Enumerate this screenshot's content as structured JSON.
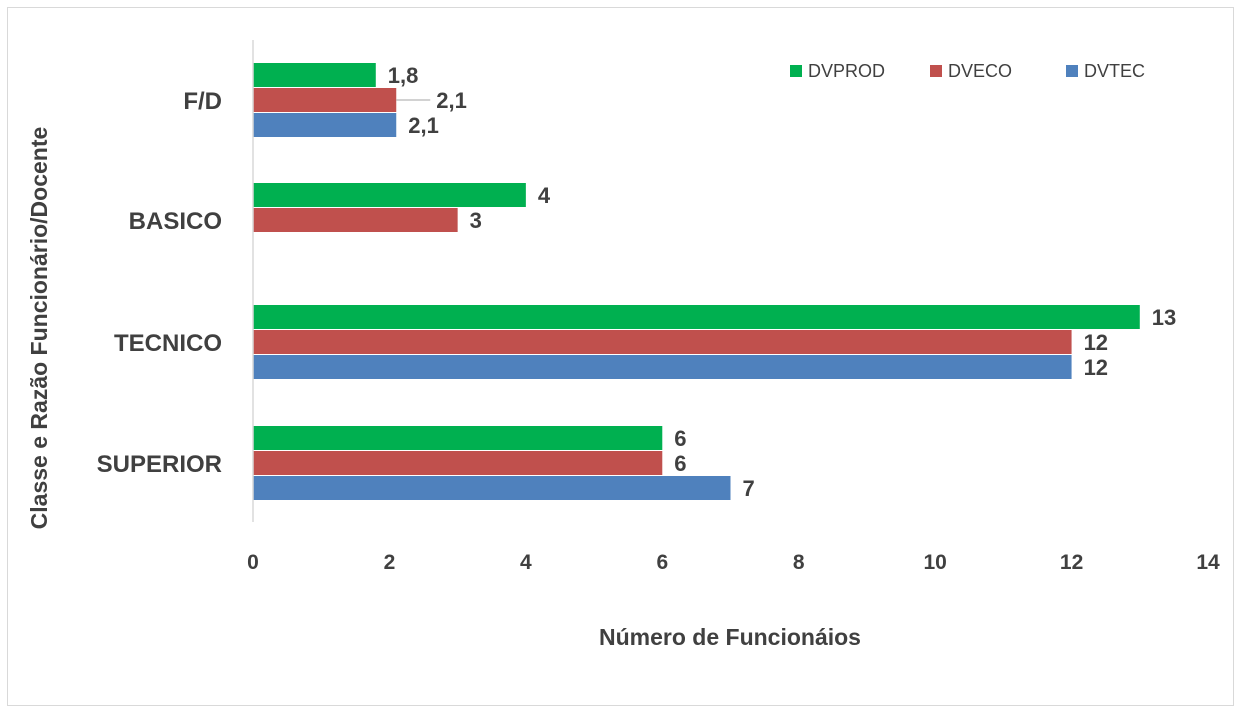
{
  "chart_data": {
    "type": "bar",
    "orientation": "horizontal",
    "categories": [
      "F/D",
      "BASICO",
      "TECNICO",
      "SUPERIOR"
    ],
    "series": [
      {
        "name": "DVPROD",
        "color": "#00b050",
        "values": [
          1.8,
          4,
          13,
          6
        ],
        "labels": [
          "1,8",
          "4",
          "13",
          "6"
        ]
      },
      {
        "name": "DVECO",
        "color": "#c0504d",
        "values": [
          2.1,
          3,
          12,
          6
        ],
        "labels": [
          "2,1",
          "3",
          "12",
          "6"
        ]
      },
      {
        "name": "DVTEC",
        "color": "#4f81bd",
        "values": [
          2.1,
          null,
          12,
          7
        ],
        "labels": [
          "2,1",
          null,
          "12",
          "7"
        ]
      }
    ],
    "xlim": [
      0,
      14
    ],
    "xticks": [
      "0",
      "2",
      "4",
      "6",
      "8",
      "10",
      "12",
      "14"
    ],
    "xlabel": "Número de Funcionáios",
    "ylabel": "Classe e Razão Funcionário/Docente",
    "title": "",
    "legend_position": "top-right",
    "grid": false
  }
}
